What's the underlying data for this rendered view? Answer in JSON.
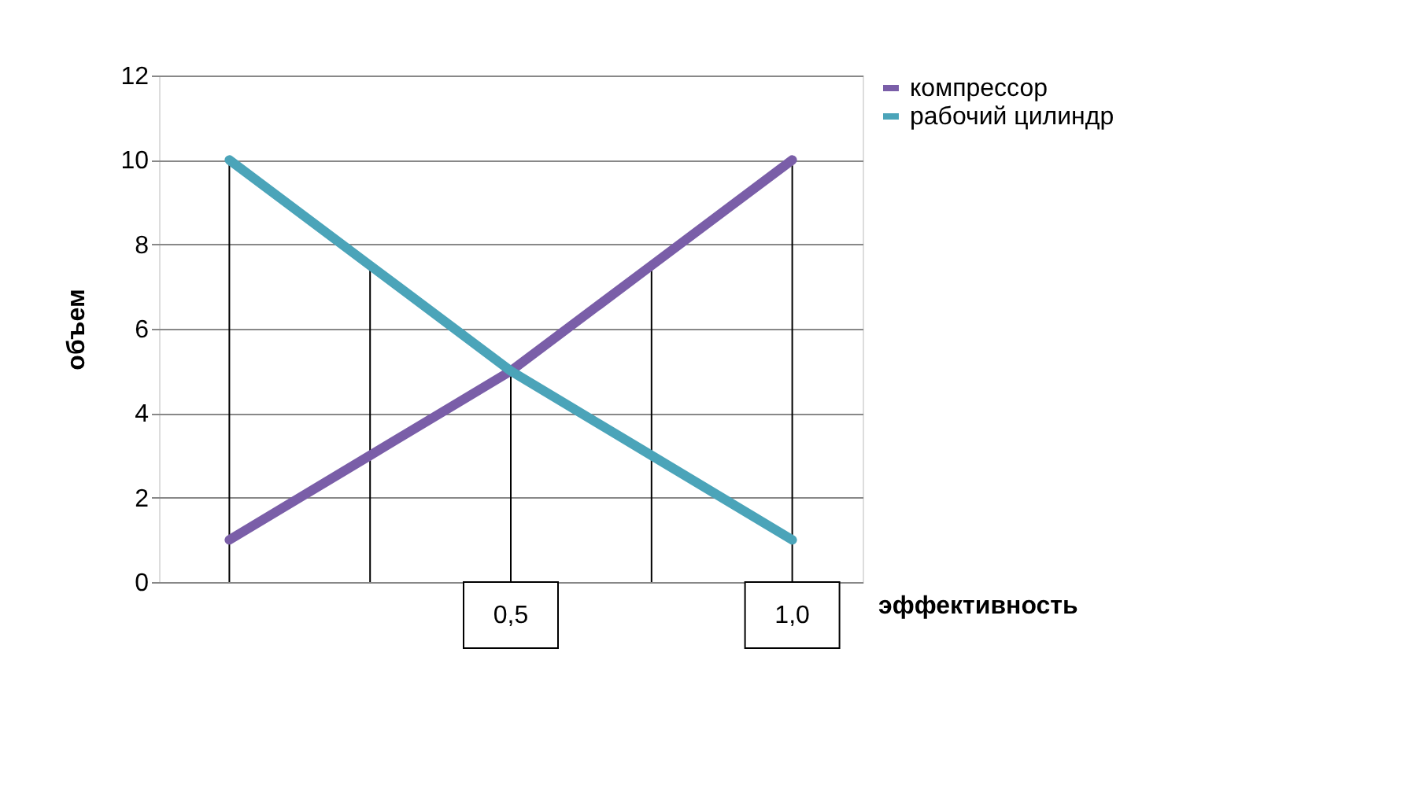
{
  "chart_data": {
    "type": "line",
    "xlabel": "эффективность",
    "ylabel": "объем",
    "categories": [
      null,
      null,
      null,
      null,
      null
    ],
    "series": [
      {
        "name": "компрессор",
        "color": "#7a5ea8",
        "values": [
          1,
          3,
          5,
          7.5,
          10
        ]
      },
      {
        "name": "рабочий цилиндр",
        "color": "#4ba4b9",
        "values": [
          10,
          7.5,
          5,
          3,
          1
        ]
      }
    ],
    "ylim": [
      0,
      12
    ],
    "yticks": [
      0,
      2,
      4,
      6,
      8,
      10,
      12
    ],
    "grid": "y",
    "legend": "right",
    "marker": "none",
    "line_style": "solid",
    "annotations": [
      "0,5",
      "1,0"
    ]
  }
}
